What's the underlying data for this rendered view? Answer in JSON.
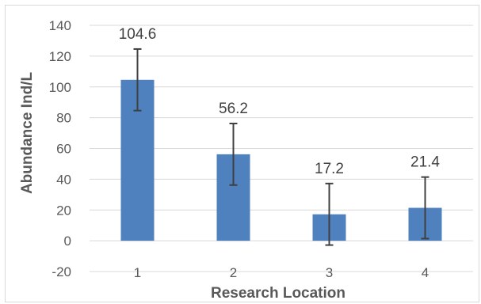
{
  "chart_data": {
    "type": "bar",
    "categories": [
      "1",
      "2",
      "3",
      "4"
    ],
    "values": [
      104.6,
      56.2,
      17.2,
      21.4
    ],
    "error_bars": [
      20,
      20,
      20,
      20
    ],
    "data_labels": [
      "104.6",
      "56.2",
      "17.2",
      "21.4"
    ],
    "title": "",
    "xlabel": "Research Location",
    "ylabel": "Abundance Ind/L",
    "ylim": [
      -20,
      140
    ],
    "yticks": [
      -20,
      0,
      20,
      40,
      60,
      80,
      100,
      120,
      140
    ],
    "grid": true,
    "legend": "none",
    "colors": {
      "bar": "#4e81bd",
      "error_bar": "#404040",
      "grid": "#d9d9d9",
      "text": "#595959"
    }
  }
}
